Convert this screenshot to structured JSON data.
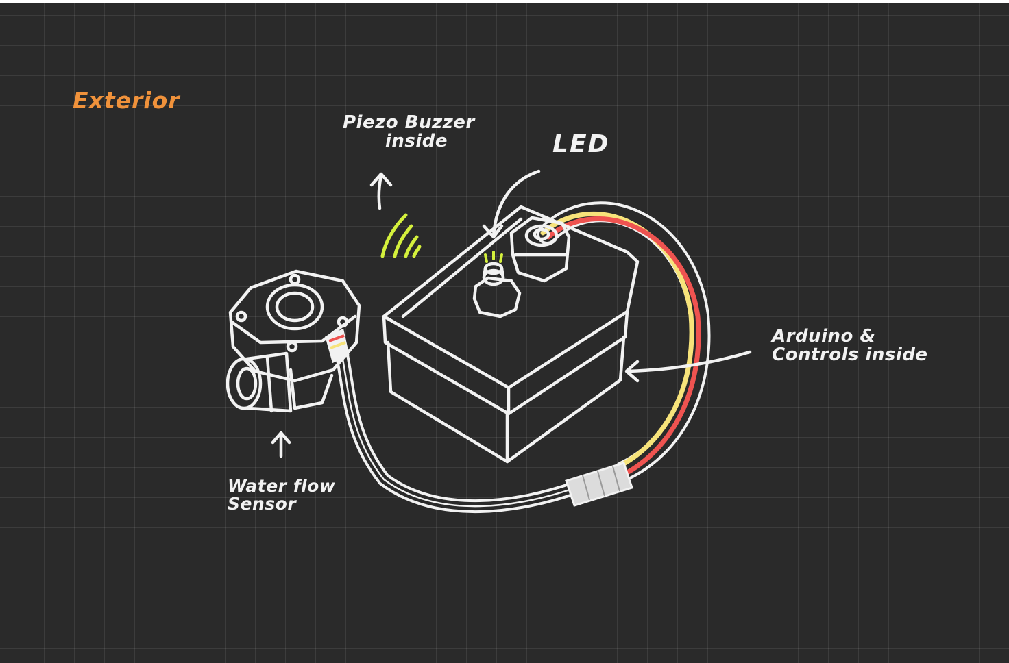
{
  "diagram": {
    "title": "Exterior",
    "labels": {
      "piezo_line1": "Piezo Buzzer",
      "piezo_line2": "inside",
      "led": "LED",
      "arduino_line1": "Arduino &",
      "arduino_line2": "Controls inside",
      "sensor_line1": "Water flow",
      "sensor_line2": "Sensor"
    },
    "colors": {
      "background": "#2a2a2a",
      "title": "#f0923b",
      "ink": "#f2f2f2",
      "accent_green": "#d4f03c",
      "wire_yellow": "#f7e37a",
      "wire_red": "#ef5350"
    }
  }
}
